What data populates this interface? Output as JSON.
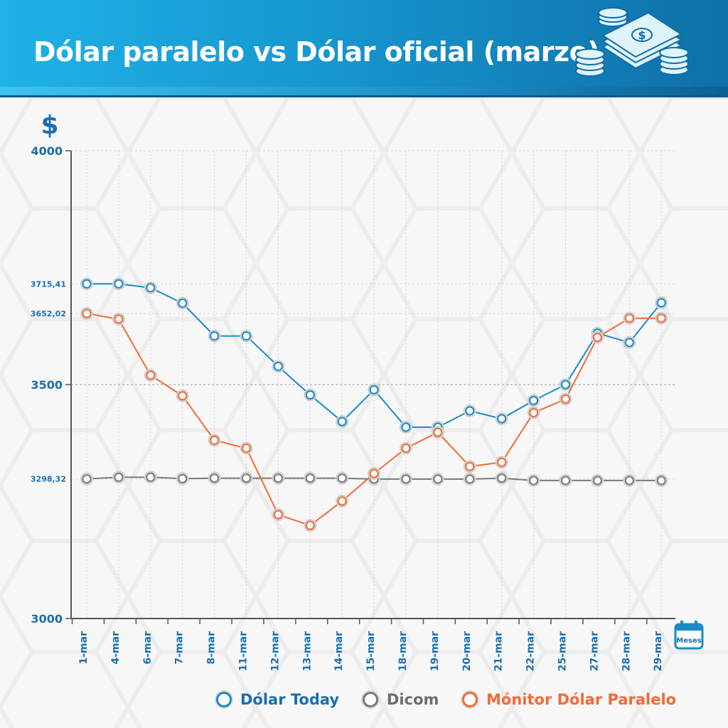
{
  "header": {
    "title": "Dólar paralelo vs Dólar oficial (marzo)",
    "icon": "money-stack-icon"
  },
  "colors": {
    "dolar_today": "#1a8bc4",
    "dicom": "#7a7a7a",
    "monitor": "#f26a35",
    "axis_label": "#1a6fb0",
    "header_start": "#1fb2e6",
    "header_end": "#0f6fa8"
  },
  "chart_data": {
    "type": "line",
    "ylabel": "$",
    "xlabel": "Meses",
    "x_axis_icon": "calendar-icon",
    "ylim": [
      3000,
      4000
    ],
    "yticks": [
      "4000",
      "3500",
      "3000"
    ],
    "reference_labels": [
      {
        "label": "3715,41",
        "value": 3715.41
      },
      {
        "label": "3652,02",
        "value": 3652.02
      },
      {
        "label": "3298,32",
        "value": 3298.32
      }
    ],
    "categories": [
      "1-mar",
      "4-mar",
      "6-mar",
      "7-mar",
      "8-mar",
      "11-mar",
      "12-mar",
      "13-mar",
      "14-mar",
      "15-mar",
      "18-mar",
      "19-mar",
      "20-mar",
      "21-mar",
      "22-mar",
      "25-mar",
      "27-mar",
      "28-mar",
      "29-mar"
    ],
    "grid": true,
    "legend_position": "bottom",
    "series": [
      {
        "name": "Dólar Today",
        "color": "#1a8bc4",
        "values": [
          3715.41,
          3715.41,
          3707,
          3674,
          3604,
          3604,
          3539,
          3478,
          3421,
          3489,
          3409,
          3409,
          3444,
          3427,
          3466,
          3500,
          3610,
          3590,
          3675
        ]
      },
      {
        "name": "Dicom",
        "color": "#7a7a7a",
        "values": [
          3298.32,
          3302,
          3302,
          3299,
          3300,
          3300,
          3300,
          3300,
          3300,
          3298,
          3298,
          3298,
          3298,
          3300,
          3295,
          3295,
          3295,
          3295,
          3295
        ]
      },
      {
        "name": "Mónitor Dólar Paralelo",
        "color": "#f26a35",
        "values": [
          3652.02,
          3640,
          3520,
          3476,
          3381,
          3364,
          3222,
          3199,
          3251,
          3310,
          3364,
          3398,
          3325,
          3334,
          3440,
          3469,
          3601,
          3642,
          3642
        ]
      }
    ]
  }
}
